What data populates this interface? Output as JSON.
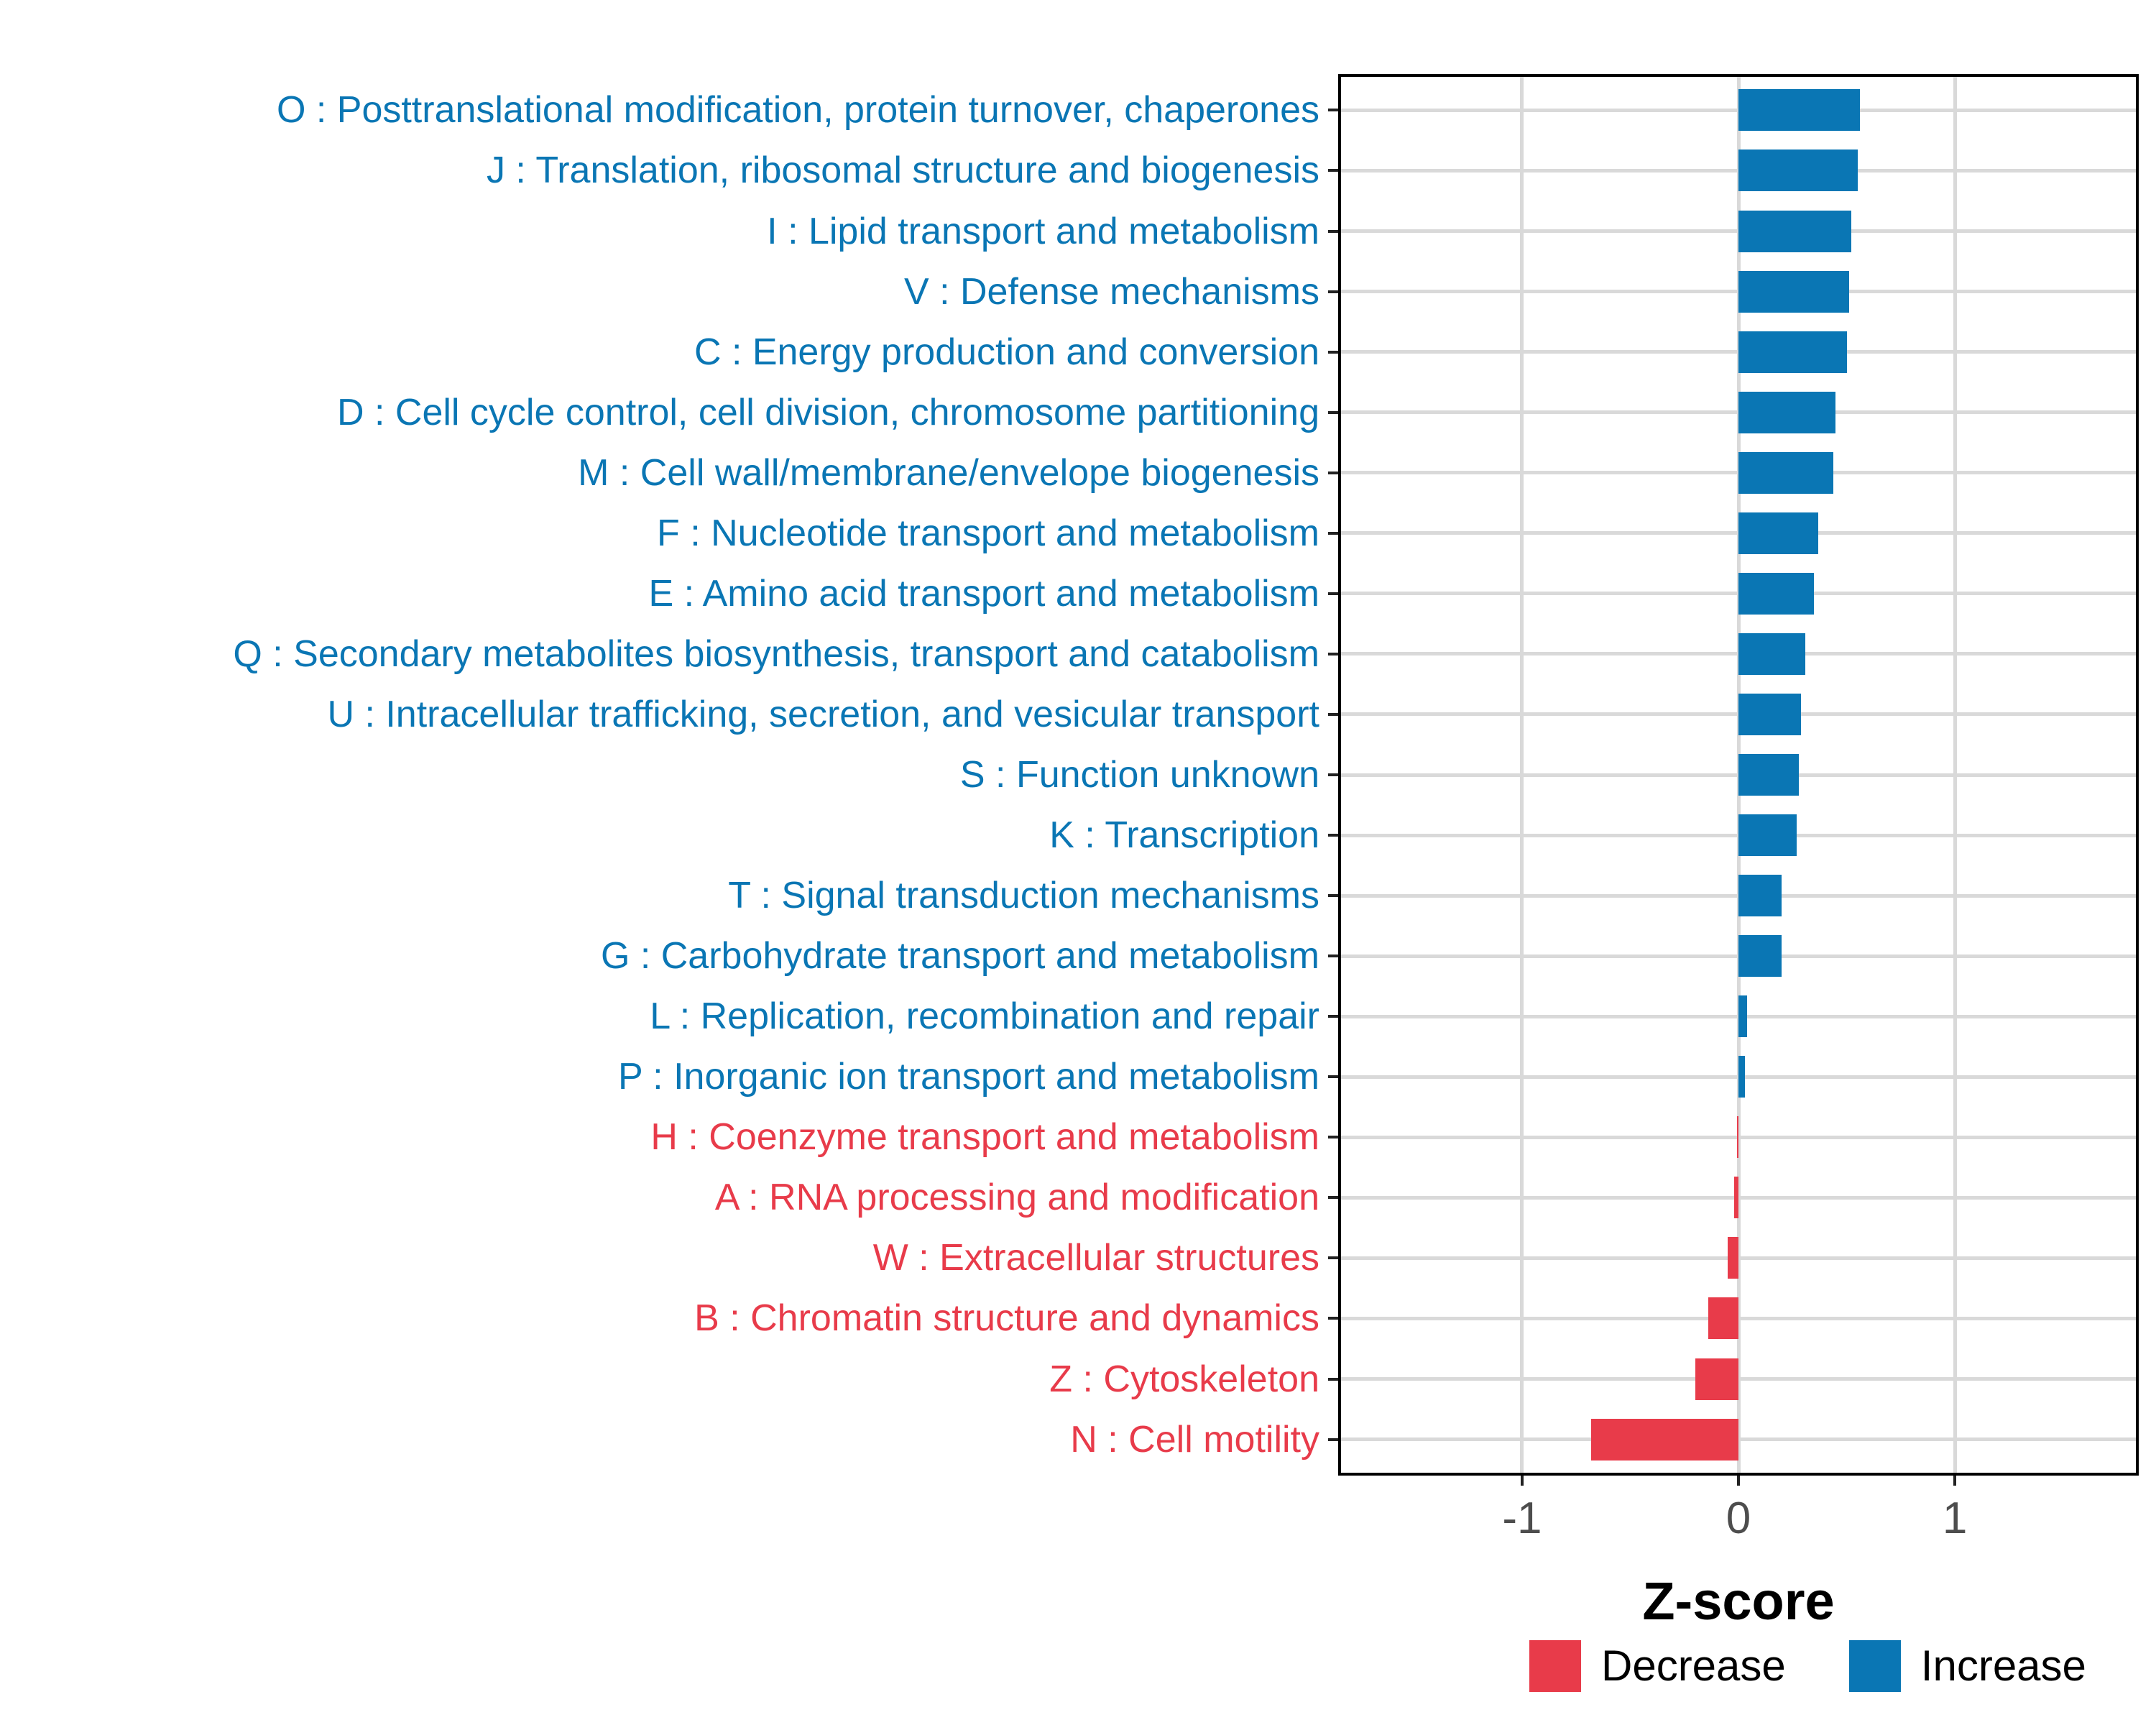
{
  "chart_data": {
    "type": "bar",
    "orientation": "horizontal",
    "title": "",
    "xlabel": "Z-score",
    "ylabel": "",
    "xlim": [
      -1.85,
      1.85
    ],
    "xticks": [
      {
        "value": -1,
        "label": "-1"
      },
      {
        "value": 0,
        "label": "0"
      },
      {
        "value": 1,
        "label": "1"
      }
    ],
    "grid": "major-gridlines-on-light-gray",
    "legend_position": "bottom-right",
    "colors": {
      "increase": "#0a76b4",
      "decrease": "#e83b4a"
    },
    "legend": [
      {
        "label": "Decrease",
        "key": "decrease",
        "color": "#e83b4a"
      },
      {
        "label": "Increase",
        "key": "increase",
        "color": "#0a76b4"
      }
    ],
    "categories": [
      {
        "label": "O : Posttranslational modification, protein turnover, chaperones",
        "value": 0.56,
        "direction": "increase"
      },
      {
        "label": "J : Translation, ribosomal structure and biogenesis",
        "value": 0.55,
        "direction": "increase"
      },
      {
        "label": "I : Lipid transport and metabolism",
        "value": 0.52,
        "direction": "increase"
      },
      {
        "label": "V : Defense mechanisms",
        "value": 0.51,
        "direction": "increase"
      },
      {
        "label": "C : Energy production and conversion",
        "value": 0.5,
        "direction": "increase"
      },
      {
        "label": "D : Cell cycle control, cell division, chromosome partitioning",
        "value": 0.45,
        "direction": "increase"
      },
      {
        "label": "M : Cell wall/membrane/envelope biogenesis",
        "value": 0.44,
        "direction": "increase"
      },
      {
        "label": "F : Nucleotide transport and metabolism",
        "value": 0.37,
        "direction": "increase"
      },
      {
        "label": "E : Amino acid transport and metabolism",
        "value": 0.35,
        "direction": "increase"
      },
      {
        "label": "Q : Secondary metabolites biosynthesis, transport and catabolism",
        "value": 0.31,
        "direction": "increase"
      },
      {
        "label": "U : Intracellular trafficking, secretion, and vesicular transport",
        "value": 0.29,
        "direction": "increase"
      },
      {
        "label": "S : Function unknown",
        "value": 0.28,
        "direction": "increase"
      },
      {
        "label": "K : Transcription",
        "value": 0.27,
        "direction": "increase"
      },
      {
        "label": "T : Signal transduction mechanisms",
        "value": 0.2,
        "direction": "increase"
      },
      {
        "label": "G : Carbohydrate transport and metabolism",
        "value": 0.2,
        "direction": "increase"
      },
      {
        "label": "L : Replication, recombination and repair",
        "value": 0.04,
        "direction": "increase"
      },
      {
        "label": "P : Inorganic ion transport and metabolism",
        "value": 0.03,
        "direction": "increase"
      },
      {
        "label": "H : Coenzyme transport and metabolism",
        "value": -0.005,
        "direction": "decrease"
      },
      {
        "label": "A : RNA processing and modification",
        "value": -0.02,
        "direction": "decrease"
      },
      {
        "label": "W : Extracellular structures",
        "value": -0.05,
        "direction": "decrease"
      },
      {
        "label": "B : Chromatin structure and dynamics",
        "value": -0.14,
        "direction": "decrease"
      },
      {
        "label": "Z : Cytoskeleton",
        "value": -0.2,
        "direction": "decrease"
      },
      {
        "label": "N : Cell motility",
        "value": -0.68,
        "direction": "decrease"
      }
    ]
  }
}
